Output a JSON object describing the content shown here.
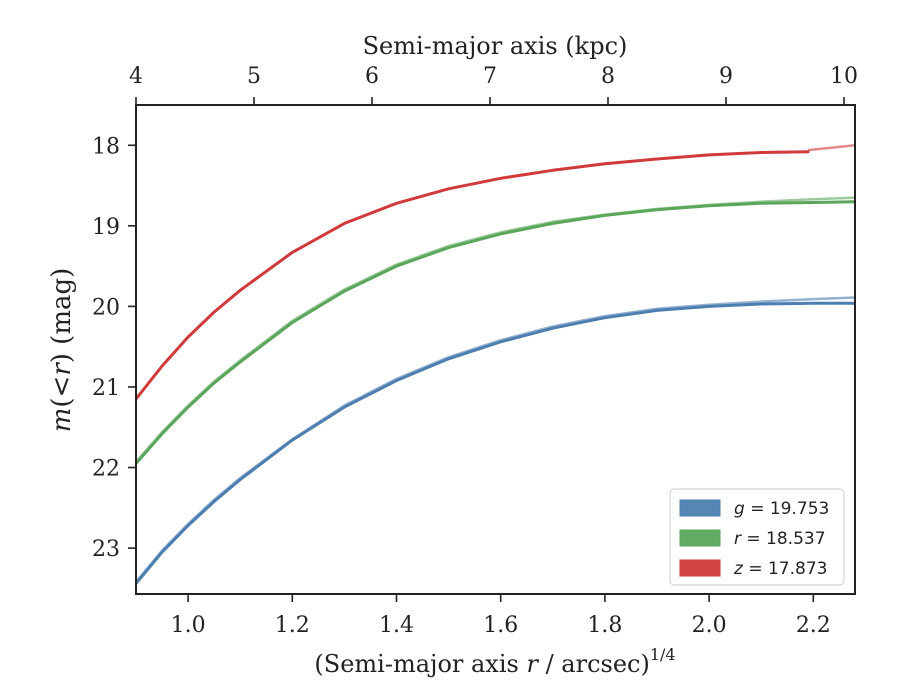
{
  "chart_data": {
    "type": "line",
    "x_bottom": {
      "label_prefix": "(Semi-major axis ",
      "label_var": "r",
      "label_mid": " / arcsec)",
      "label_sup": "1/4",
      "lim": [
        0.9,
        2.28
      ],
      "ticks": [
        1.0,
        1.2,
        1.4,
        1.6,
        1.8,
        2.0,
        2.2
      ],
      "tick_labels": [
        "1.0",
        "1.2",
        "1.4",
        "1.6",
        "1.8",
        "2.0",
        "2.2"
      ]
    },
    "x_top": {
      "label": "Semi-major axis (kpc)",
      "ticks": [
        4,
        5,
        6,
        7,
        8,
        9,
        10
      ],
      "tick_labels": [
        "4",
        "5",
        "6",
        "7",
        "8",
        "9",
        "10"
      ]
    },
    "y": {
      "label_var_a": "m",
      "label_paren": "(<",
      "label_var_b": "r",
      "label_close": ")",
      "label_unit": " (mag)",
      "lim": [
        23.57,
        17.5
      ],
      "inverted": true,
      "ticks": [
        18,
        19,
        20,
        21,
        22,
        23
      ],
      "tick_labels": [
        "18",
        "19",
        "20",
        "21",
        "22",
        "23"
      ]
    },
    "legend": {
      "placement": "lower-right",
      "entries": [
        {
          "var": "g",
          "value": "19.753",
          "color": "#4c7fb0"
        },
        {
          "var": "r",
          "value": "18.537",
          "color": "#5aa65a"
        },
        {
          "var": "z",
          "value": "17.873",
          "color": "#d03a3a"
        }
      ]
    },
    "series": [
      {
        "band": "g",
        "color": "#4c7fb0",
        "x": [
          0.9,
          0.95,
          1.0,
          1.05,
          1.1,
          1.2,
          1.3,
          1.4,
          1.5,
          1.6,
          1.7,
          1.8,
          1.9,
          2.0,
          2.1,
          2.2,
          2.28
        ],
        "y": [
          23.44,
          23.05,
          22.72,
          22.42,
          22.15,
          21.66,
          21.25,
          20.92,
          20.65,
          20.44,
          20.27,
          20.14,
          20.05,
          20.0,
          19.97,
          19.96,
          19.96
        ],
        "y_band": [
          23.42,
          23.03,
          22.7,
          22.4,
          22.13,
          21.65,
          21.23,
          20.9,
          20.63,
          20.42,
          20.25,
          20.12,
          20.03,
          19.98,
          19.94,
          19.91,
          19.89
        ]
      },
      {
        "band": "r",
        "color": "#5aa65a",
        "x": [
          0.9,
          0.95,
          1.0,
          1.05,
          1.1,
          1.2,
          1.3,
          1.4,
          1.5,
          1.6,
          1.7,
          1.8,
          1.9,
          2.0,
          2.1,
          2.2,
          2.28
        ],
        "y": [
          21.95,
          21.58,
          21.25,
          20.95,
          20.69,
          20.2,
          19.81,
          19.5,
          19.27,
          19.1,
          18.97,
          18.87,
          18.8,
          18.75,
          18.72,
          18.71,
          18.7
        ],
        "y_band": [
          21.93,
          21.56,
          21.23,
          20.93,
          20.67,
          20.18,
          19.79,
          19.48,
          19.25,
          19.08,
          18.95,
          18.86,
          18.79,
          18.74,
          18.7,
          18.67,
          18.65
        ]
      },
      {
        "band": "z",
        "color": "#d03a3a",
        "x": [
          0.9,
          0.95,
          1.0,
          1.05,
          1.1,
          1.2,
          1.3,
          1.4,
          1.5,
          1.6,
          1.7,
          1.8,
          1.9,
          2.0,
          2.1,
          2.19
        ],
        "y": [
          21.15,
          20.74,
          20.38,
          20.07,
          19.8,
          19.33,
          18.97,
          18.72,
          18.54,
          18.41,
          18.31,
          18.23,
          18.17,
          18.12,
          18.09,
          18.08
        ],
        "x_band": [
          2.19,
          2.28
        ],
        "y_band": [
          18.06,
          18.0
        ]
      }
    ]
  }
}
